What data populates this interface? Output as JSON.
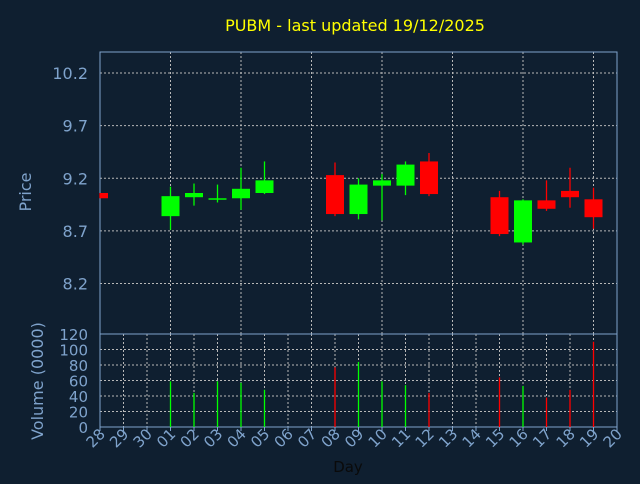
{
  "chart_data": [
    {
      "type": "candlestick",
      "title": "PUBM - last updated 19/12/2025",
      "ylabel": "Price",
      "ylim": [
        7.72,
        10.4
      ],
      "yticks": [
        "8.2",
        "8.7",
        "9.2",
        "9.7",
        "10.2"
      ],
      "grid": true,
      "colors": {
        "up": "#00ff00",
        "down": "#ff0000"
      },
      "categories": [
        "28",
        "29",
        "30",
        "01",
        "02",
        "03",
        "04",
        "05",
        "06",
        "07",
        "08",
        "09",
        "10",
        "11",
        "12",
        "13",
        "14",
        "15",
        "16",
        "17",
        "18",
        "19",
        "20"
      ],
      "candles": [
        {
          "day": "28",
          "open": 9.06,
          "high": 9.06,
          "low": 9.01,
          "close": 9.01
        },
        {
          "day": "01",
          "open": 8.84,
          "high": 9.12,
          "low": 8.71,
          "close": 9.03
        },
        {
          "day": "02",
          "open": 9.02,
          "high": 9.15,
          "low": 8.94,
          "close": 9.06
        },
        {
          "day": "03",
          "open": 9.0,
          "high": 9.14,
          "low": 8.97,
          "close": 9.01
        },
        {
          "day": "04",
          "open": 9.01,
          "high": 9.3,
          "low": 8.9,
          "close": 9.1
        },
        {
          "day": "05",
          "open": 9.06,
          "high": 9.36,
          "low": 9.05,
          "close": 9.18
        },
        {
          "day": "08",
          "open": 9.23,
          "high": 9.35,
          "low": 8.84,
          "close": 8.86
        },
        {
          "day": "09",
          "open": 8.86,
          "high": 9.2,
          "low": 8.81,
          "close": 9.14
        },
        {
          "day": "10",
          "open": 9.13,
          "high": 9.24,
          "low": 8.8,
          "close": 9.18
        },
        {
          "day": "11",
          "open": 9.13,
          "high": 9.36,
          "low": 9.04,
          "close": 9.33
        },
        {
          "day": "12",
          "open": 9.36,
          "high": 9.44,
          "low": 9.03,
          "close": 9.05
        },
        {
          "day": "15",
          "open": 9.02,
          "high": 9.08,
          "low": 8.65,
          "close": 8.67
        },
        {
          "day": "16",
          "open": 8.59,
          "high": 9.0,
          "low": 8.57,
          "close": 8.99
        },
        {
          "day": "17",
          "open": 8.99,
          "high": 9.18,
          "low": 8.89,
          "close": 8.91
        },
        {
          "day": "18",
          "open": 9.08,
          "high": 9.3,
          "low": 8.92,
          "close": 9.02
        },
        {
          "day": "19",
          "open": 9.0,
          "high": 9.11,
          "low": 8.72,
          "close": 8.83
        }
      ]
    },
    {
      "type": "bar",
      "ylabel": "Volume (0000)",
      "xlabel": "Day",
      "ylim": [
        0,
        120
      ],
      "yticks": [
        "0",
        "20",
        "40",
        "60",
        "80",
        "100",
        "120"
      ],
      "grid": true,
      "categories": [
        "28",
        "29",
        "30",
        "01",
        "02",
        "03",
        "04",
        "05",
        "06",
        "07",
        "08",
        "09",
        "10",
        "11",
        "12",
        "13",
        "14",
        "15",
        "16",
        "17",
        "18",
        "19",
        "20"
      ],
      "bars": [
        {
          "day": "01",
          "value": 59,
          "direction": "up"
        },
        {
          "day": "02",
          "value": 44,
          "direction": "up"
        },
        {
          "day": "03",
          "value": 59,
          "direction": "up"
        },
        {
          "day": "04",
          "value": 57,
          "direction": "up"
        },
        {
          "day": "05",
          "value": 48,
          "direction": "up"
        },
        {
          "day": "08",
          "value": 77,
          "direction": "down"
        },
        {
          "day": "09",
          "value": 84,
          "direction": "up"
        },
        {
          "day": "10",
          "value": 59,
          "direction": "up"
        },
        {
          "day": "11",
          "value": 54,
          "direction": "up"
        },
        {
          "day": "12",
          "value": 44,
          "direction": "down"
        },
        {
          "day": "15",
          "value": 64,
          "direction": "down"
        },
        {
          "day": "16",
          "value": 53,
          "direction": "up"
        },
        {
          "day": "17",
          "value": 38,
          "direction": "down"
        },
        {
          "day": "18",
          "value": 48,
          "direction": "down"
        },
        {
          "day": "19",
          "value": 110,
          "direction": "down"
        }
      ]
    }
  ]
}
